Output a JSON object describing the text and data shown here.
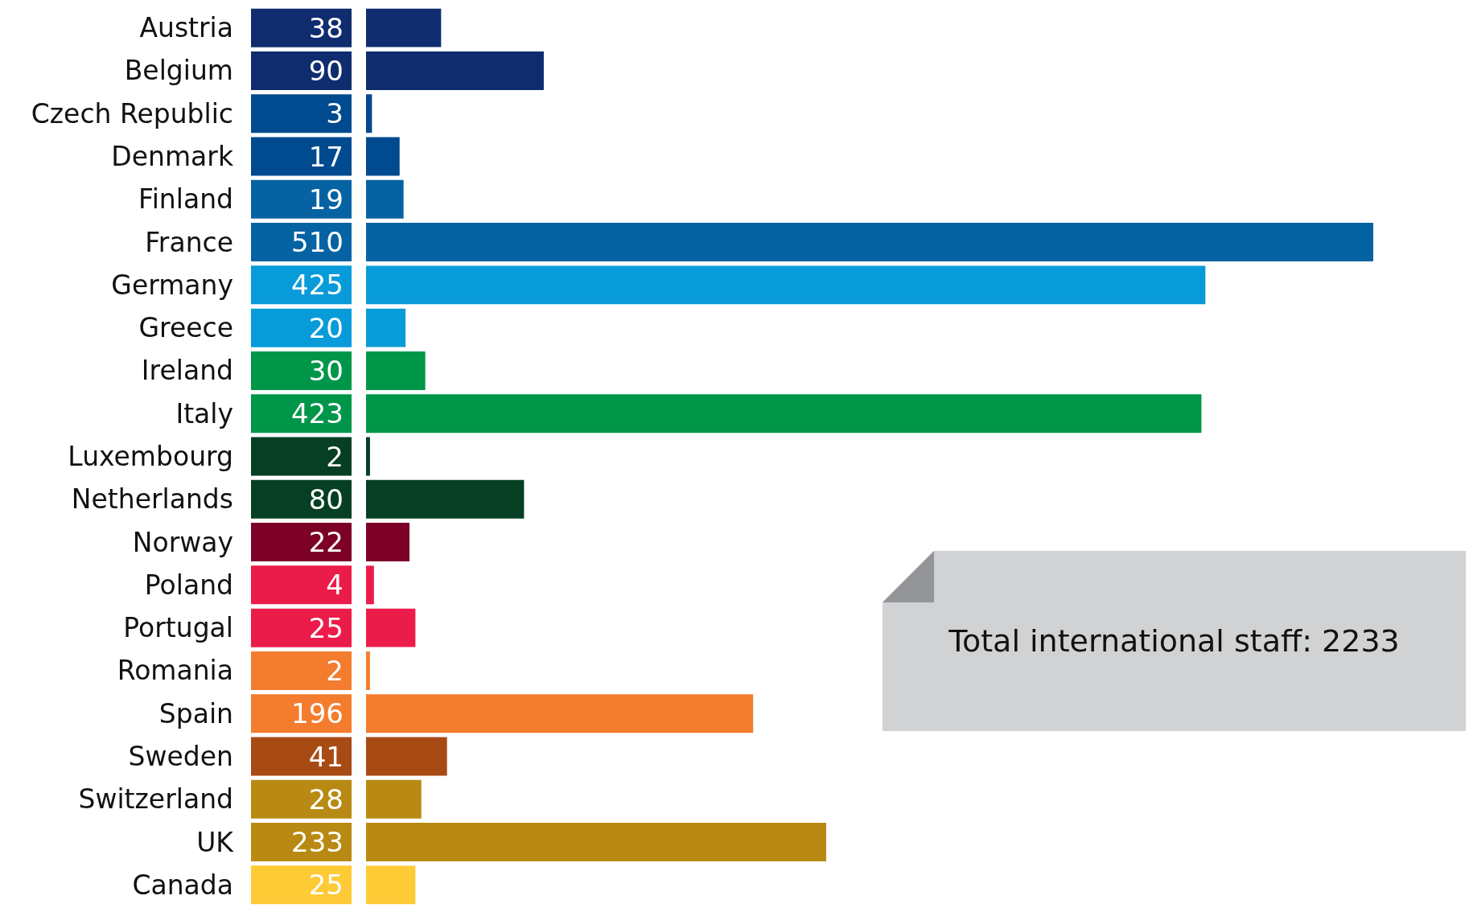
{
  "chart_data": {
    "type": "bar",
    "orientation": "horizontal",
    "categories": [
      "Austria",
      "Belgium",
      "Czech Republic",
      "Denmark",
      "Finland",
      "France",
      "Germany",
      "Greece",
      "Ireland",
      "Italy",
      "Luxembourg",
      "Netherlands",
      "Norway",
      "Poland",
      "Portugal",
      "Romania",
      "Spain",
      "Sweden",
      "Switzerland",
      "UK",
      "Canada"
    ],
    "values": [
      38,
      90,
      3,
      17,
      19,
      510,
      425,
      20,
      30,
      423,
      2,
      80,
      22,
      4,
      25,
      2,
      196,
      41,
      28,
      233,
      25
    ],
    "colors": [
      "#0f2d6e",
      "#0f2d6e",
      "#004a8f",
      "#004a8f",
      "#0563a3",
      "#0563a3",
      "#089bd9",
      "#089bd9",
      "#00964a",
      "#00964a",
      "#063f24",
      "#063f24",
      "#7d0028",
      "#ec1c4a",
      "#ec1c4a",
      "#f47c2e",
      "#f47c2e",
      "#a84a14",
      "#b98a13",
      "#b98a13",
      "#fecb36"
    ],
    "xlim": [
      0,
      510
    ],
    "data_labels": true,
    "tick_labels": "y",
    "annotations": [
      "Total international staff: 2233"
    ]
  }
}
